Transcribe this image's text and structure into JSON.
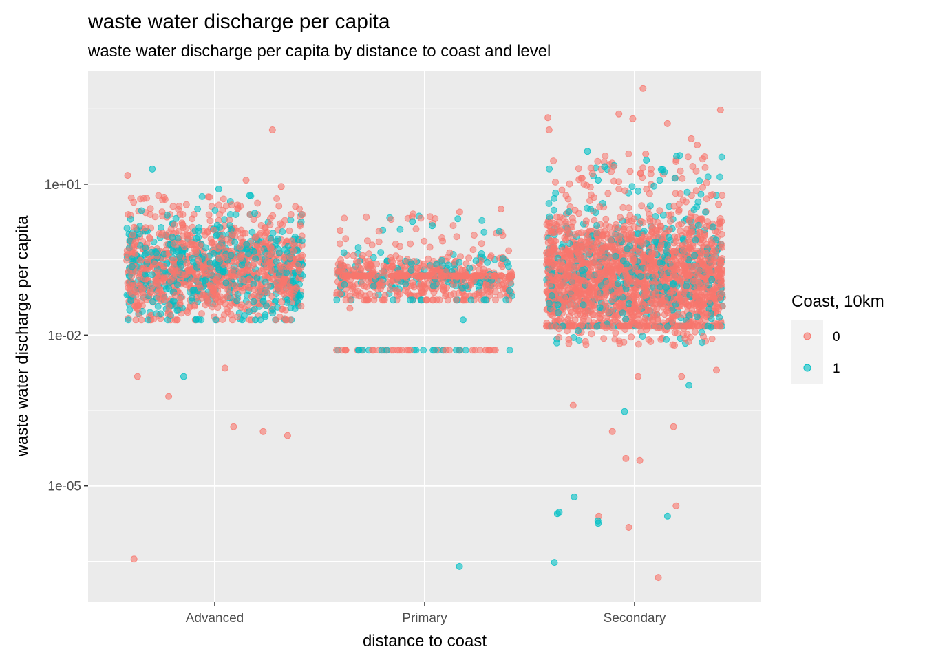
{
  "chart_data": {
    "type": "scatter",
    "jitter": true,
    "title": "waste water discharge per capita",
    "subtitle": "waste water discharge per capita by distance to coast and level",
    "xlabel": "distance to coast",
    "ylabel": "waste water discharge per capita",
    "y_scale": "log10",
    "ylim": [
      5e-08,
      1800
    ],
    "y_ticks": [
      {
        "value": 1e-05,
        "label": "1e-05"
      },
      {
        "value": 0.01,
        "label": "1e-02"
      },
      {
        "value": 10,
        "label": "1e+01"
      }
    ],
    "categories": [
      "Advanced",
      "Primary",
      "Secondary"
    ],
    "grid": true,
    "legend": {
      "title": "Coast, 10km",
      "position": "right",
      "entries": [
        {
          "label": "0",
          "color": "#F8766D"
        },
        {
          "label": "1",
          "color": "#00BFC4"
        }
      ]
    },
    "colors": {
      "panel": "#EBEBEB",
      "grid": "#FFFFFF",
      "series0": "#F8766D",
      "series1": "#00BFC4"
    },
    "series": [
      {
        "name": "0",
        "color": "#F8766D",
        "points": [
          {
            "x": "Advanced",
            "y": 120
          },
          {
            "x": "Advanced",
            "y": 15
          },
          {
            "x": "Advanced",
            "y": 12
          },
          {
            "x": "Advanced",
            "y": 9
          },
          {
            "x": "Advanced",
            "y": 5.5
          },
          {
            "x": "Advanced",
            "y": 0.0015
          },
          {
            "x": "Advanced",
            "y": 0.0006
          },
          {
            "x": "Advanced",
            "y": 0.00015
          },
          {
            "x": "Advanced",
            "y": 0.00012
          },
          {
            "x": "Advanced",
            "y": 0.0001
          },
          {
            "x": "Advanced",
            "y": 0.0022
          },
          {
            "x": "Advanced",
            "y": 3.5e-07
          },
          {
            "x": "Primary",
            "y": 3.2
          },
          {
            "x": "Primary",
            "y": 2.8
          },
          {
            "x": "Primary",
            "y": 1.2
          },
          {
            "x": "Primary",
            "y": 0.034
          },
          {
            "x": "Primary",
            "y": 0.005
          },
          {
            "x": "Primary",
            "y": 0.005
          },
          {
            "x": "Primary",
            "y": 0.005
          },
          {
            "x": "Primary",
            "y": 0.005
          },
          {
            "x": "Primary",
            "y": 0.005
          },
          {
            "x": "Primary",
            "y": 0.005
          },
          {
            "x": "Secondary",
            "y": 800
          },
          {
            "x": "Secondary",
            "y": 300
          },
          {
            "x": "Secondary",
            "y": 250
          },
          {
            "x": "Secondary",
            "y": 200
          },
          {
            "x": "Secondary",
            "y": 210
          },
          {
            "x": "Secondary",
            "y": 160
          },
          {
            "x": "Secondary",
            "y": 120
          },
          {
            "x": "Secondary",
            "y": 80
          },
          {
            "x": "Secondary",
            "y": 60
          },
          {
            "x": "Secondary",
            "y": 40
          },
          {
            "x": "Secondary",
            "y": 0.002
          },
          {
            "x": "Secondary",
            "y": 0.0015
          },
          {
            "x": "Secondary",
            "y": 0.0015
          },
          {
            "x": "Secondary",
            "y": 0.0004
          },
          {
            "x": "Secondary",
            "y": 0.00015
          },
          {
            "x": "Secondary",
            "y": 0.00012
          },
          {
            "x": "Secondary",
            "y": 3.5e-05
          },
          {
            "x": "Secondary",
            "y": 3.2e-05
          },
          {
            "x": "Secondary",
            "y": 4e-06
          },
          {
            "x": "Secondary",
            "y": 2.5e-06
          },
          {
            "x": "Secondary",
            "y": 1.5e-06
          },
          {
            "x": "Secondary",
            "y": 1.5e-07
          }
        ]
      },
      {
        "name": "1",
        "color": "#00BFC4",
        "points": [
          {
            "x": "Advanced",
            "y": 20
          },
          {
            "x": "Advanced",
            "y": 8
          },
          {
            "x": "Advanced",
            "y": 6
          },
          {
            "x": "Advanced",
            "y": 0.0015
          },
          {
            "x": "Advanced",
            "y": 0.02
          },
          {
            "x": "Primary",
            "y": 1.8
          },
          {
            "x": "Primary",
            "y": 1.5
          },
          {
            "x": "Primary",
            "y": 0.02
          },
          {
            "x": "Primary",
            "y": 0.005
          },
          {
            "x": "Primary",
            "y": 0.005
          },
          {
            "x": "Primary",
            "y": 2.5e-07
          },
          {
            "x": "Secondary",
            "y": 45
          },
          {
            "x": "Secondary",
            "y": 30
          },
          {
            "x": "Secondary",
            "y": 12
          },
          {
            "x": "Secondary",
            "y": 0.001
          },
          {
            "x": "Secondary",
            "y": 0.0003
          },
          {
            "x": "Secondary",
            "y": 6e-06
          },
          {
            "x": "Secondary",
            "y": 3e-06
          },
          {
            "x": "Secondary",
            "y": 2.5e-06
          },
          {
            "x": "Secondary",
            "y": 2e-06
          },
          {
            "x": "Secondary",
            "y": 1.8e-06
          },
          {
            "x": "Secondary",
            "y": 2.8e-06
          },
          {
            "x": "Secondary",
            "y": 3e-07
          }
        ]
      }
    ],
    "dense_clusters": [
      {
        "x": "Advanced",
        "y_min": 0.02,
        "y_max": 2.5,
        "center": 0.2,
        "colors": [
          "#F8766D",
          "#00BFC4"
        ]
      },
      {
        "x": "Primary",
        "y_min": 0.05,
        "y_max": 0.5,
        "center": 0.15,
        "colors": [
          "#F8766D",
          "#00BFC4"
        ]
      },
      {
        "x": "Primary",
        "y_band": 0.05
      },
      {
        "x": "Primary",
        "y_band": 0.15
      },
      {
        "x": "Secondary",
        "y_min": 0.015,
        "y_max": 6,
        "center": 0.15,
        "colors": [
          "#F8766D",
          "#00BFC4"
        ]
      }
    ]
  }
}
